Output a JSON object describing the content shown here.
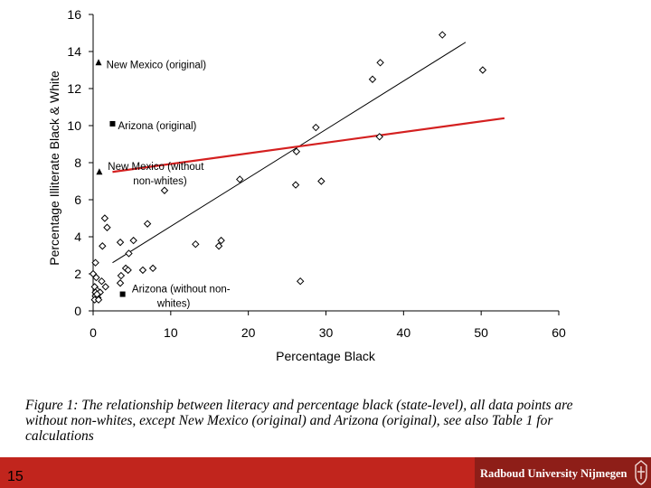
{
  "chart_data": {
    "type": "scatter",
    "xlabel": "Percentage Black",
    "ylabel": "Percentage Illiterate Black & White",
    "xlim": [
      0,
      60
    ],
    "ylim": [
      0,
      16
    ],
    "xticks": [
      0,
      10,
      20,
      30,
      40,
      50,
      60
    ],
    "yticks": [
      0,
      2,
      4,
      6,
      8,
      10,
      12,
      14,
      16
    ],
    "grid": false,
    "series": [
      {
        "marker": "open-diamond",
        "points": [
          [
            45,
            14.9
          ],
          [
            37,
            13.4
          ],
          [
            50.2,
            13
          ],
          [
            36,
            12.5
          ],
          [
            28.7,
            9.9
          ],
          [
            36.9,
            9.4
          ],
          [
            26.2,
            8.6
          ],
          [
            18.9,
            7.1
          ],
          [
            29.4,
            7
          ],
          [
            26.1,
            6.8
          ],
          [
            9.2,
            6.5
          ],
          [
            1.5,
            5
          ],
          [
            1.8,
            4.5
          ],
          [
            7,
            4.7
          ],
          [
            1.2,
            3.5
          ],
          [
            3.5,
            3.7
          ],
          [
            5.2,
            3.8
          ],
          [
            13.2,
            3.6
          ],
          [
            16.5,
            3.8
          ],
          [
            16.2,
            3.5
          ],
          [
            4.6,
            3.1
          ],
          [
            0.3,
            2.6
          ],
          [
            4.2,
            2.3
          ],
          [
            4.5,
            2.2
          ],
          [
            6.4,
            2.2
          ],
          [
            7.7,
            2.3
          ],
          [
            0,
            2
          ],
          [
            0.4,
            1.8
          ],
          [
            3.6,
            1.9
          ],
          [
            3.5,
            1.5
          ],
          [
            1.1,
            1.6
          ],
          [
            1.6,
            1.3
          ],
          [
            26.7,
            1.6
          ],
          [
            0.2,
            1.3
          ],
          [
            0.5,
            1.1
          ],
          [
            0.3,
            1
          ],
          [
            0.9,
            1
          ],
          [
            0.3,
            0.8
          ],
          [
            0.6,
            0.7
          ],
          [
            0.2,
            0.6
          ],
          [
            0.7,
            0.6
          ],
          [
            0.5,
            0.9
          ]
        ]
      },
      {
        "marker": "filled-triangle",
        "points": [
          [
            0.7,
            13.4
          ],
          [
            0.8,
            7.5
          ]
        ]
      },
      {
        "marker": "filled-square",
        "points": [
          [
            2.5,
            10.1
          ],
          [
            3.8,
            0.9
          ]
        ]
      }
    ],
    "annotations": [
      {
        "text": "New Mexico (original)",
        "lines": [
          "New Mexico (original)"
        ],
        "at": [
          1.7,
          13.3
        ]
      },
      {
        "text": "Arizona (original)",
        "lines": [
          "Arizona (original)"
        ],
        "at": [
          3.2,
          10
        ]
      },
      {
        "text": "New Mexico (without non-whites)",
        "lines": [
          "New Mexico (without",
          "non-whites)"
        ],
        "at": [
          1.9,
          7.8
        ]
      },
      {
        "text": "Arizona (without non-whites)",
        "lines": [
          "Arizona (without non-",
          "whites)"
        ],
        "at": [
          5,
          1.2
        ]
      }
    ],
    "trendlines": [
      {
        "color": "#000000",
        "from": [
          2.5,
          2.6
        ],
        "to": [
          48,
          14.5
        ]
      },
      {
        "color": "#d42020",
        "from": [
          2.5,
          7.5
        ],
        "to": [
          53,
          10.4
        ]
      }
    ]
  },
  "caption": "Figure 1: The relationship between literacy and percentage black (state-level), all data points are without non-whites, except New Mexico (original) and Arizona (original), see also Table 1 for calculations",
  "footer": {
    "page_number": "15",
    "institution": "Radboud University Nijmegen"
  },
  "colors": {
    "footer_red": "#c1251d",
    "footer_dark": "#8e1e18",
    "trend_red": "#d42020"
  }
}
